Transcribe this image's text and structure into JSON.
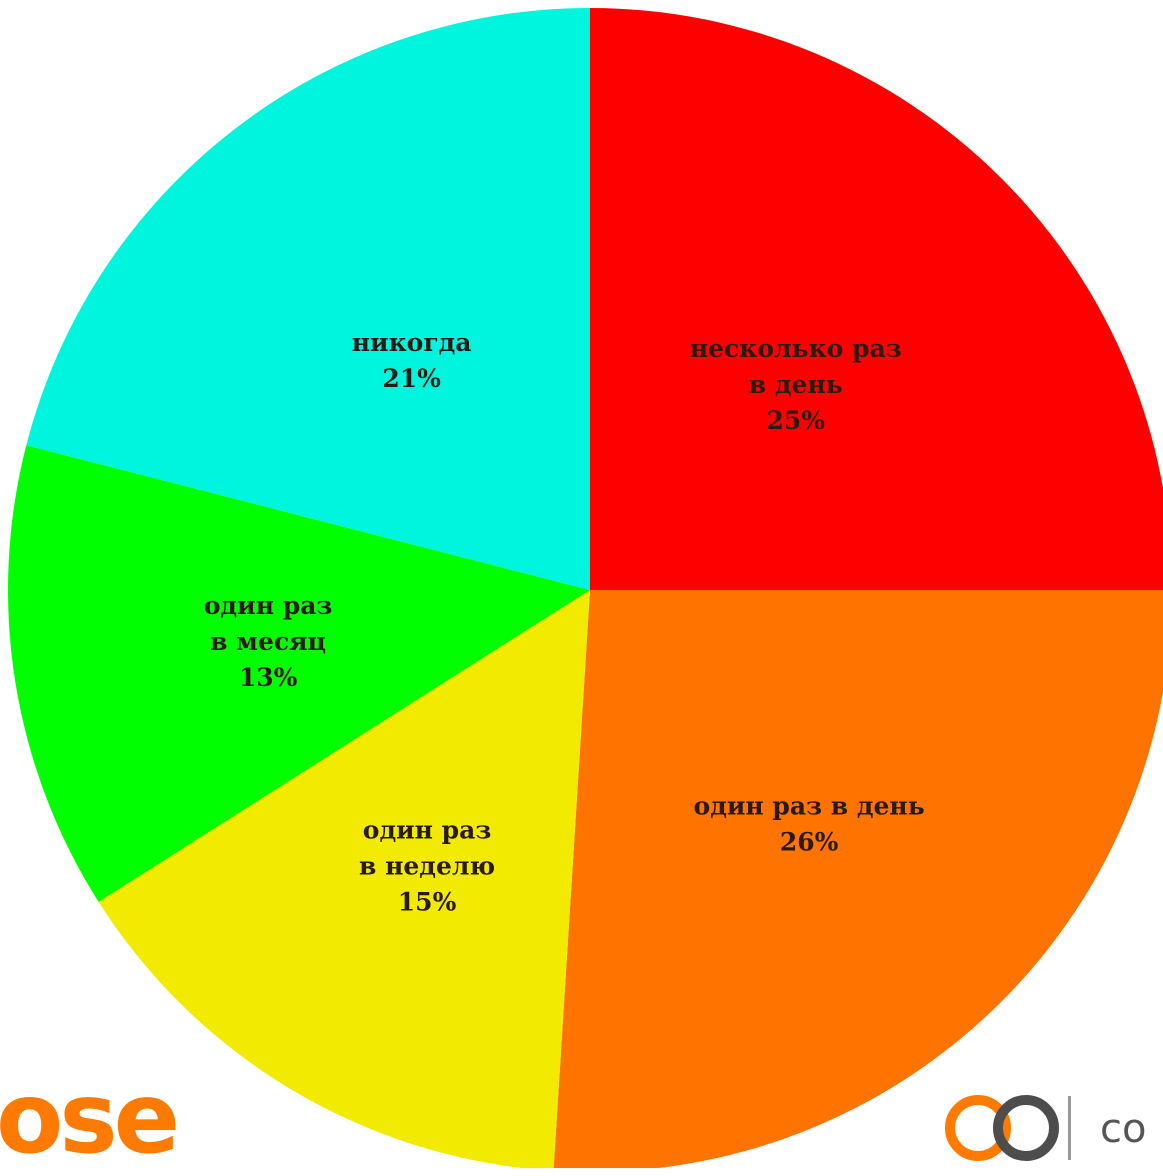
{
  "chart_data": {
    "type": "pie",
    "slices": [
      {
        "label_lines": [
          "несколько раз",
          "в день"
        ],
        "percent_label": "25%",
        "value": 25,
        "color": "#ff0000"
      },
      {
        "label_lines": [
          "один раз в день"
        ],
        "percent_label": "26%",
        "value": 26,
        "color": "#ff7400"
      },
      {
        "label_lines": [
          "один раз",
          "в неделю"
        ],
        "percent_label": "15%",
        "value": 15,
        "color": "#f2ea00"
      },
      {
        "label_lines": [
          "один раз",
          "в месяц"
        ],
        "percent_label": "13%",
        "value": 13,
        "color": "#00ff00"
      },
      {
        "label_lines": [
          "никогда"
        ],
        "percent_label": "21%",
        "value": 21,
        "color": "#00f5de"
      }
    ],
    "start_angle": "12 o'clock",
    "direction": "clockwise"
  },
  "branding": {
    "left_text": "ose",
    "left_color": "#ff7a00",
    "right_text": "co",
    "right_icon": "infinity-logo-icon"
  }
}
